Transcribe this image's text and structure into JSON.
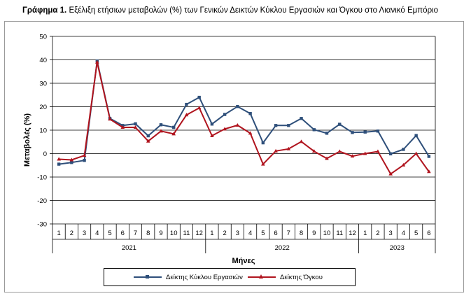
{
  "title": {
    "bold": "Γράφημα 1.",
    "rest": " Εξέλιξη ετήσιων μεταβολών (%) των Γενικών Δεικτών Κύκλου Εργασιών και Όγκου στο Λιανικό Εμπόριο"
  },
  "chart_data": {
    "type": "line",
    "ylabel": "Μεταβολές (%)",
    "xlabel": "Μήνες",
    "ylim": [
      -30,
      50
    ],
    "ytick_step": 10,
    "grid": true,
    "legend_position": "bottom",
    "categories": [
      "1",
      "2",
      "3",
      "4",
      "5",
      "6",
      "7",
      "8",
      "9",
      "10",
      "11",
      "12",
      "1",
      "2",
      "3",
      "4",
      "5",
      "6",
      "7",
      "8",
      "9",
      "10",
      "11",
      "12",
      "1",
      "2",
      "3",
      "4",
      "5",
      "6"
    ],
    "years": [
      {
        "label": "2021",
        "count": 12
      },
      {
        "label": "2022",
        "count": 12
      },
      {
        "label": "2023",
        "count": 6
      }
    ],
    "series": [
      {
        "name": "Δείκτης Κύκλου Εργασιών",
        "color": "#2e4f7a",
        "marker": "square",
        "values": [
          -4.5,
          -3.8,
          -2.9,
          39.5,
          15.0,
          12.0,
          12.7,
          7.6,
          12.3,
          11.2,
          21.0,
          24.0,
          12.6,
          16.7,
          20.1,
          17.1,
          4.6,
          12.0,
          12.0,
          15.0,
          10.2,
          8.7,
          12.5,
          9.0,
          9.2,
          9.6,
          -0.1,
          1.8,
          7.7,
          -1.2
        ]
      },
      {
        "name": "Δείκτης Όγκου",
        "color": "#b0141e",
        "marker": "triangle",
        "values": [
          -2.4,
          -2.7,
          -0.8,
          39.0,
          14.7,
          11.2,
          11.2,
          5.3,
          9.6,
          8.4,
          16.5,
          19.5,
          7.6,
          10.5,
          12.1,
          8.7,
          -4.5,
          1.1,
          2.0,
          5.1,
          1.0,
          -2.1,
          0.9,
          -1.1,
          0.0,
          0.9,
          -8.7,
          -4.9,
          0.0,
          -7.7
        ]
      }
    ]
  }
}
